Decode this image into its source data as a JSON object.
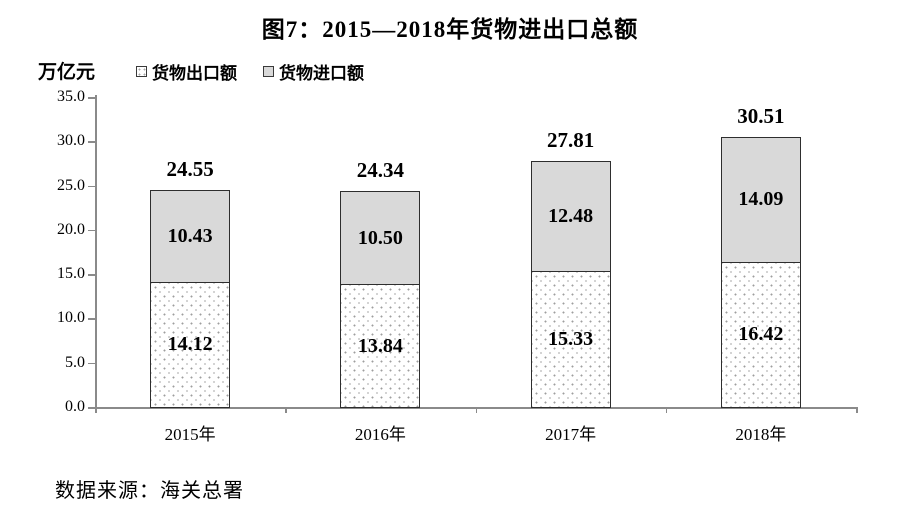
{
  "title": "图7：2015—2018年货物进出口总额",
  "unit_label": "万亿元",
  "legend": {
    "export_label": "货物出口额",
    "import_label": "货物进口额"
  },
  "source": "数据来源：海关总署",
  "chart_data": {
    "type": "bar",
    "stacked": true,
    "title": "图7：2015—2018年货物进出口总额",
    "ylabel": "万亿元",
    "categories": [
      "2015年",
      "2016年",
      "2017年",
      "2018年"
    ],
    "series": [
      {
        "name": "货物出口额",
        "style": "dotted-white",
        "values": [
          14.12,
          13.84,
          15.33,
          16.42
        ]
      },
      {
        "name": "货物进口额",
        "style": "gray",
        "values": [
          10.43,
          10.5,
          12.48,
          14.09
        ]
      }
    ],
    "totals": [
      24.55,
      24.34,
      27.81,
      30.51
    ],
    "ylim": [
      0,
      35
    ],
    "ytick_step": 5,
    "ytick_labels": [
      "0.0",
      "5.0",
      "10.0",
      "15.0",
      "20.0",
      "25.0",
      "30.0",
      "35.0"
    ],
    "grid": false,
    "legend_position": "top-left",
    "colors": {
      "import_fill": "#d9d9d9",
      "export_fill": "#ffffff",
      "export_dot": "#9e9e9e",
      "bar_border": "#2e2e2e",
      "axis": "#8a8a8a",
      "text": "#000000"
    }
  }
}
